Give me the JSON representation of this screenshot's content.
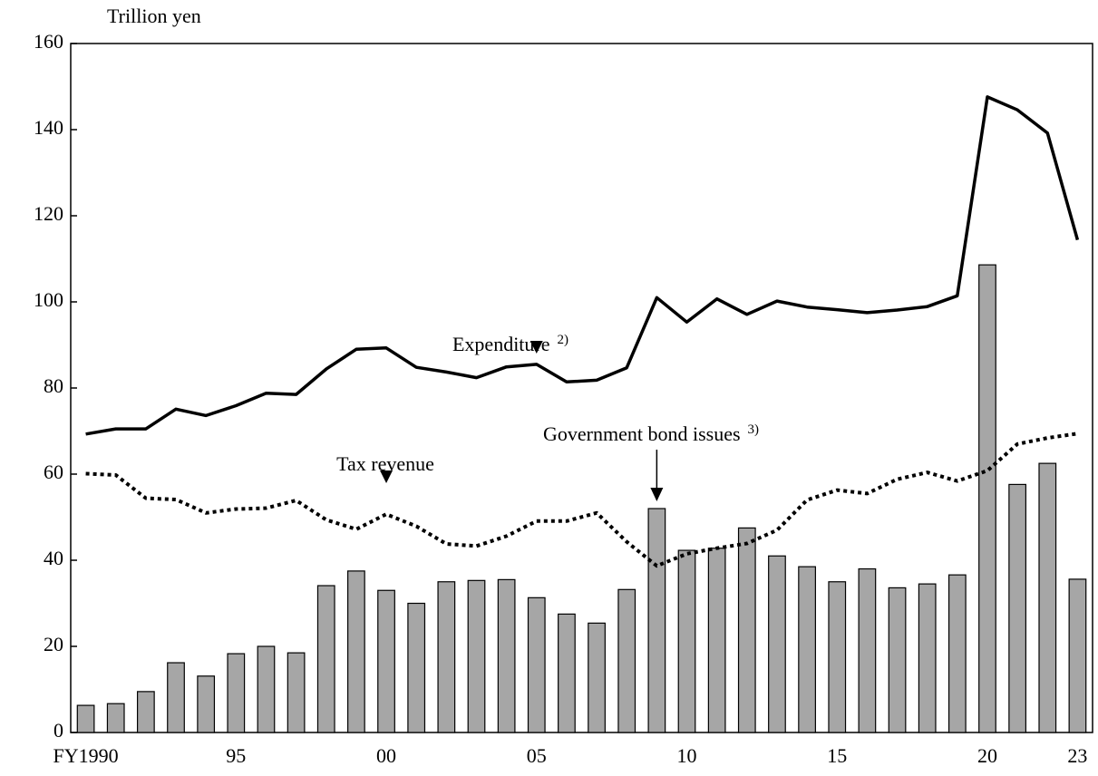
{
  "chart_data": {
    "type": "bar",
    "y_label": "Trillion yen",
    "categories": [
      "FY1990",
      null,
      null,
      null,
      null,
      "95",
      null,
      null,
      null,
      null,
      "00",
      null,
      null,
      null,
      null,
      "05",
      null,
      null,
      null,
      null,
      "10",
      null,
      null,
      null,
      null,
      "15",
      null,
      null,
      null,
      null,
      "20",
      null,
      null,
      "23"
    ],
    "ylim": [
      0,
      160
    ],
    "yticks": [
      0,
      20,
      40,
      60,
      80,
      100,
      120,
      140,
      160
    ],
    "series": [
      {
        "name": "Expenditure",
        "note": "2)",
        "type": "line",
        "style": "solid",
        "color": "#000000",
        "values": [
          69.3,
          70.5,
          70.5,
          75.1,
          73.6,
          75.9,
          78.8,
          78.5,
          84.4,
          89.0,
          89.3,
          84.8,
          83.7,
          82.4,
          84.9,
          85.5,
          81.4,
          81.8,
          84.7,
          101.0,
          95.3,
          100.7,
          97.1,
          100.2,
          98.8,
          98.2,
          97.5,
          98.1,
          98.9,
          101.4,
          147.6,
          144.6,
          139.2,
          114.4
        ]
      },
      {
        "name": "Tax revenue",
        "type": "line",
        "style": "dotted",
        "color": "#000000",
        "values": [
          60.1,
          59.8,
          54.4,
          54.1,
          51.0,
          51.9,
          52.1,
          53.9,
          49.4,
          47.2,
          50.7,
          47.9,
          43.8,
          43.3,
          45.6,
          49.1,
          49.1,
          51.0,
          44.3,
          38.7,
          41.5,
          42.8,
          43.9,
          47.0,
          54.0,
          56.3,
          55.5,
          58.8,
          60.4,
          58.4,
          60.8,
          67.0,
          68.4,
          69.4
        ]
      },
      {
        "name": "Government bond issues",
        "note": "3)",
        "type": "bar",
        "color": "#a6a6a6",
        "values": [
          6.3,
          6.7,
          9.5,
          16.2,
          13.1,
          18.3,
          20.0,
          18.5,
          34.1,
          37.5,
          33.0,
          30.0,
          35.0,
          35.3,
          35.5,
          31.3,
          27.5,
          25.4,
          33.2,
          52.0,
          42.3,
          42.8,
          47.5,
          41.0,
          38.5,
          35.0,
          38.0,
          33.6,
          34.5,
          36.6,
          108.6,
          57.6,
          62.5,
          35.6
        ]
      }
    ]
  }
}
